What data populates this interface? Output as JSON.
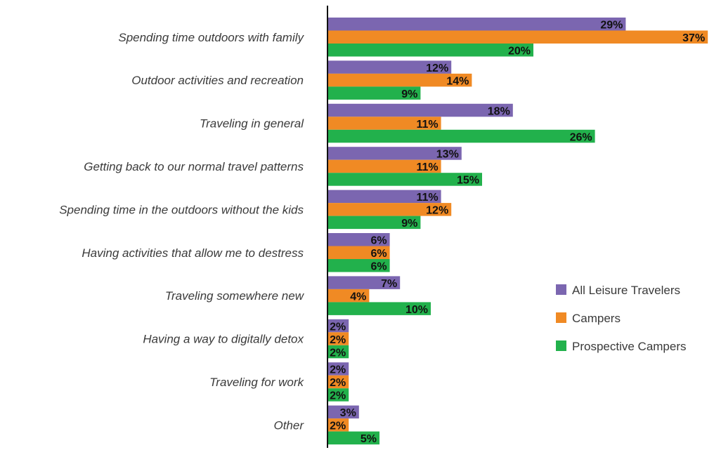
{
  "chart_data": {
    "type": "bar",
    "orientation": "horizontal",
    "categories": [
      "Spending time outdoors with family",
      "Outdoor activities and recreation",
      "Traveling in general",
      "Getting back to our normal travel patterns",
      "Spending time in the outdoors without the kids",
      "Having activities that allow me to destress",
      "Traveling somewhere new",
      "Having a way to digitally detox",
      "Traveling for work",
      "Other"
    ],
    "series": [
      {
        "name": "All Leisure Travelers",
        "color": "#7b66b0",
        "values": [
          29,
          12,
          18,
          13,
          11,
          6,
          7,
          2,
          2,
          3
        ]
      },
      {
        "name": "Campers",
        "color": "#f08a24",
        "values": [
          37,
          14,
          11,
          11,
          12,
          6,
          4,
          2,
          2,
          2
        ]
      },
      {
        "name": "Prospective Campers",
        "color": "#22b14c",
        "values": [
          20,
          9,
          26,
          15,
          9,
          6,
          10,
          2,
          2,
          5
        ]
      }
    ],
    "value_suffix": "%",
    "xlim": [
      0,
      37
    ],
    "grid": false,
    "legend_position": "right",
    "title": "",
    "xlabel": "",
    "ylabel": ""
  }
}
